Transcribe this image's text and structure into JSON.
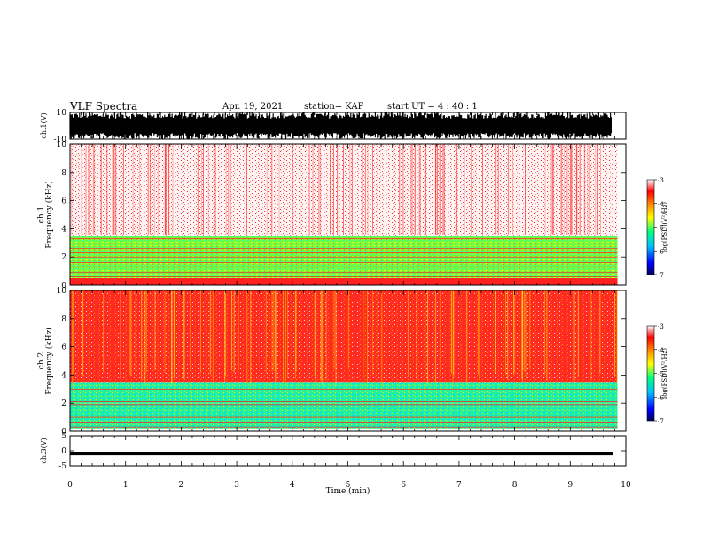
{
  "header": {
    "title": "VLF Spectra",
    "date": "Apr. 19, 2021",
    "station": "station= KAP",
    "start": "start  UT  =   4 : 40 : 1"
  },
  "chart_data": [
    {
      "type": "line",
      "panel": "ch.1 waveform",
      "ylabel": "ch.1(V)",
      "ylim": [
        -10,
        10
      ],
      "yticks": [
        -10,
        10
      ],
      "xlim": [
        0,
        10
      ],
      "appearance": "dense black trace clipping at ±10 V for most of the record"
    },
    {
      "type": "heatmap",
      "panel": "ch.1 spectrogram",
      "ylabel": "ch.1 Frequency (kHz)",
      "ylabel_lines": [
        "ch.1",
        "Frequency  (kHz)"
      ],
      "ylim": [
        0,
        10
      ],
      "yticks": [
        0,
        2,
        4,
        6,
        8,
        10
      ],
      "xlim": [
        0,
        9.85
      ],
      "colorbar": {
        "label": "log(PSD)(V²/Hz)",
        "range": [
          -7,
          -3
        ],
        "ticks": [
          -3,
          -4,
          -5,
          -6,
          -7
        ]
      },
      "bands": [
        {
          "f_low": 3.5,
          "f_high": 10.0,
          "log_psd": -3.6,
          "look": "sparse red on white"
        },
        {
          "f_low": 0.5,
          "f_high": 3.5,
          "log_psd": -4.6,
          "look": "yellow-green"
        },
        {
          "f_low": 0.0,
          "f_high": 0.5,
          "log_psd": -3.5,
          "look": "red lines"
        }
      ]
    },
    {
      "type": "heatmap",
      "panel": "ch.2 spectrogram",
      "ylabel": "ch.2 Frequency (kHz)",
      "ylabel_lines": [
        "ch.2",
        "Frequency  (kHz)"
      ],
      "ylim": [
        0,
        10
      ],
      "yticks": [
        0,
        2,
        4,
        6,
        8,
        10
      ],
      "xlim": [
        0,
        9.85
      ],
      "colorbar": {
        "label": "log(PSD)(V²/Hz)",
        "range": [
          -7,
          -3
        ],
        "ticks": [
          -3,
          -4,
          -5,
          -6,
          -7
        ]
      },
      "bands": [
        {
          "f_low": 3.5,
          "f_high": 10.0,
          "log_psd": -3.4,
          "look": "dense red"
        },
        {
          "f_low": 2.0,
          "f_high": 3.5,
          "log_psd": -5.0,
          "look": "green-cyan"
        },
        {
          "f_low": 0.2,
          "f_high": 2.0,
          "log_psd": -5.2,
          "look": "green-cyan with red lines"
        }
      ]
    },
    {
      "type": "line",
      "panel": "ch.3 waveform",
      "ylabel": "ch.3(V)",
      "ylim": [
        -5,
        5
      ],
      "yticks": [
        -5,
        0,
        5
      ],
      "xlim": [
        0,
        10
      ],
      "appearance": "flat thick black trace near -1 V"
    }
  ],
  "xaxis": {
    "label": "Time  (min)",
    "ticks": [
      0,
      1,
      2,
      3,
      4,
      5,
      6,
      7,
      8,
      9,
      10
    ]
  },
  "colors": {
    "bg": "#ffffff",
    "ink": "#000000",
    "colormap": [
      "#000060",
      "#0000ff",
      "#00c0ff",
      "#00ff80",
      "#ffff00",
      "#ff8000",
      "#ff0000",
      "#ffffff"
    ]
  }
}
